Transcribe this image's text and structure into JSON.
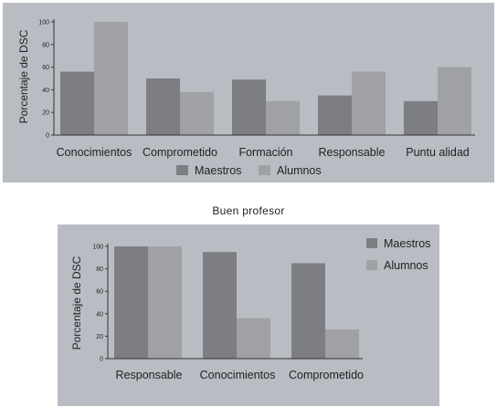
{
  "colors": {
    "maestros": "#7c7e83",
    "alumnos": "#9fa1a5",
    "panel": "#b9bcc3",
    "axis": "#333333"
  },
  "caption": "Buen profesor",
  "chart_data": [
    {
      "type": "bar",
      "categories": [
        "Conocimientos",
        "Comprometido",
        "Formación",
        "Responsable",
        "Puntualidad"
      ],
      "category_labels": [
        "Conocimientos",
        "Comprometido",
        "Formación",
        "Responsable",
        "Puntu alidad"
      ],
      "series": [
        {
          "name": "Maestros",
          "values": [
            56,
            50,
            49,
            35,
            30
          ]
        },
        {
          "name": "Alumnos",
          "values": [
            100,
            38,
            30,
            56,
            60
          ]
        }
      ],
      "ylabel": "Porcentaje de DSC",
      "ylim": [
        0,
        100
      ],
      "yticks": [
        0,
        20,
        40,
        60,
        80,
        100
      ],
      "legend": "bottom"
    },
    {
      "type": "bar",
      "categories": [
        "Responsable",
        "Conocimientos",
        "Comprometido"
      ],
      "category_labels": [
        "Responsable",
        "Conocimientos",
        "Comprometido"
      ],
      "series": [
        {
          "name": "Maestros",
          "values": [
            100,
            95,
            85
          ]
        },
        {
          "name": "Alumnos",
          "values": [
            100,
            36,
            26
          ]
        }
      ],
      "ylabel": "Porcentaje de DSC",
      "ylim": [
        0,
        100
      ],
      "yticks": [
        0,
        20,
        40,
        60,
        80,
        100
      ],
      "legend": "top-right"
    }
  ]
}
